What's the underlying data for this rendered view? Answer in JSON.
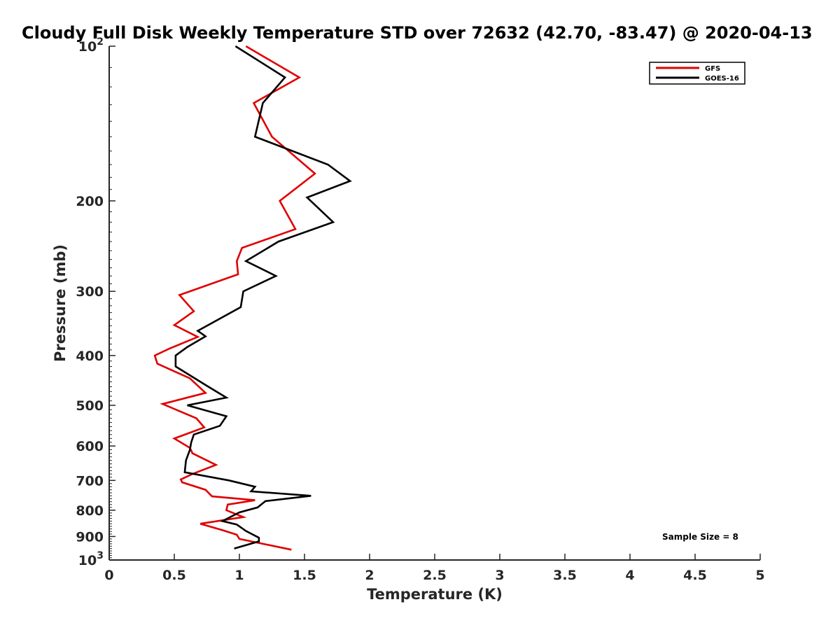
{
  "chart_data": {
    "type": "line",
    "title": "Cloudy Full Disk Weekly Temperature STD over 72632 (42.70, -83.47) @ 2020-04-13",
    "xlabel": "Temperature (K)",
    "ylabel": "Pressure (mb)",
    "xlim": [
      0,
      5
    ],
    "ylim": [
      100,
      1000
    ],
    "yscale": "log",
    "y_reversed": true,
    "grid": false,
    "legend_position": "top-right",
    "x_ticks": [
      0,
      0.5,
      1,
      1.5,
      2,
      2.5,
      3,
      3.5,
      4,
      4.5,
      5
    ],
    "x_tick_labels": [
      "0",
      "0.5",
      "1",
      "1.5",
      "2",
      "2.5",
      "3",
      "3.5",
      "4",
      "4.5",
      "5"
    ],
    "y_ticks": [
      100,
      200,
      300,
      400,
      500,
      600,
      700,
      800,
      900,
      1000
    ],
    "y_tick_labels": [
      "10^2",
      "200",
      "300",
      "400",
      "500",
      "600",
      "700",
      "800",
      "900",
      "10^3"
    ],
    "series": [
      {
        "name": "GFS",
        "color": "#e00000",
        "x": [
          1.05,
          1.46,
          1.11,
          1.25,
          1.58,
          1.31,
          1.43,
          1.02,
          0.98,
          0.99,
          0.54,
          0.65,
          0.5,
          0.68,
          0.46,
          0.35,
          0.37,
          0.62,
          0.74,
          0.41,
          0.67,
          0.73,
          0.5,
          0.62,
          0.64,
          0.82,
          0.64,
          0.55,
          0.56,
          0.74,
          0.79,
          1.12,
          0.91,
          0.9,
          1.03,
          0.7,
          0.87,
          0.98,
          1.0,
          1.2,
          1.4
        ],
        "y": [
          100,
          115,
          129,
          150,
          177,
          200,
          227,
          247,
          262,
          278,
          305,
          328,
          349,
          368,
          388,
          400,
          415,
          443,
          473,
          497,
          530,
          552,
          580,
          605,
          620,
          653,
          680,
          697,
          706,
          730,
          752,
          765,
          780,
          800,
          825,
          850,
          875,
          893,
          910,
          932,
          955
        ]
      },
      {
        "name": "GOES-16",
        "color": "#000000",
        "x": [
          0.97,
          1.35,
          1.18,
          1.12,
          1.68,
          1.85,
          1.52,
          1.72,
          1.3,
          1.05,
          1.28,
          1.03,
          1.01,
          0.68,
          0.74,
          0.6,
          0.51,
          0.51,
          0.75,
          0.9,
          0.6,
          0.9,
          0.85,
          0.65,
          0.63,
          0.62,
          0.59,
          0.58,
          0.92,
          1.12,
          1.09,
          1.55,
          1.2,
          1.14,
          1.0,
          0.87,
          0.98,
          1.05,
          1.15,
          1.15,
          0.96
        ],
        "y": [
          100,
          115,
          129,
          150,
          170,
          183,
          197,
          220,
          240,
          262,
          280,
          300,
          322,
          358,
          367,
          385,
          400,
          420,
          458,
          483,
          500,
          525,
          548,
          570,
          590,
          610,
          640,
          675,
          700,
          720,
          735,
          750,
          768,
          790,
          808,
          840,
          853,
          878,
          905,
          920,
          950
        ]
      }
    ],
    "annotation": "Sample Size = 8"
  }
}
